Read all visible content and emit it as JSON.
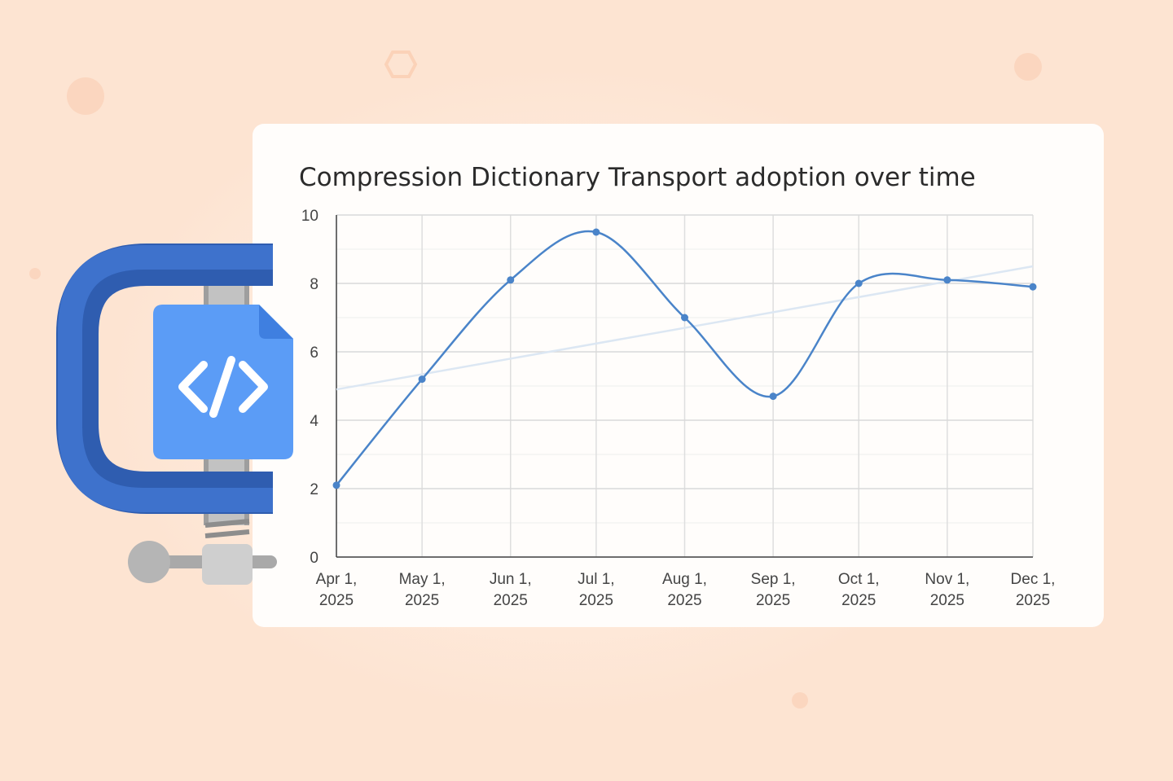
{
  "chart_data": {
    "type": "line",
    "title": "Compression Dictionary Transport adoption over time",
    "x": [
      "Apr 1, 2025",
      "May 1, 2025",
      "Jun 1, 2025",
      "Jul 1, 2025",
      "Aug 1, 2025",
      "Sep 1, 2025",
      "Oct 1, 2025",
      "Nov 1, 2025",
      "Dec 1, 2025"
    ],
    "series": [
      {
        "color": "#4a84c9",
        "values": [
          2.1,
          5.2,
          8.1,
          9.5,
          7.0,
          4.7,
          8.0,
          8.1,
          7.9
        ]
      }
    ],
    "trendline": {
      "color": "#dce7f3",
      "values": [
        4.9,
        8.5
      ]
    },
    "ylim": [
      0,
      10
    ],
    "yticks": [
      0,
      2,
      4,
      6,
      8,
      10
    ],
    "minor_yticks": [
      1,
      3,
      5,
      7,
      9
    ],
    "grid": true,
    "smooth": true
  }
}
